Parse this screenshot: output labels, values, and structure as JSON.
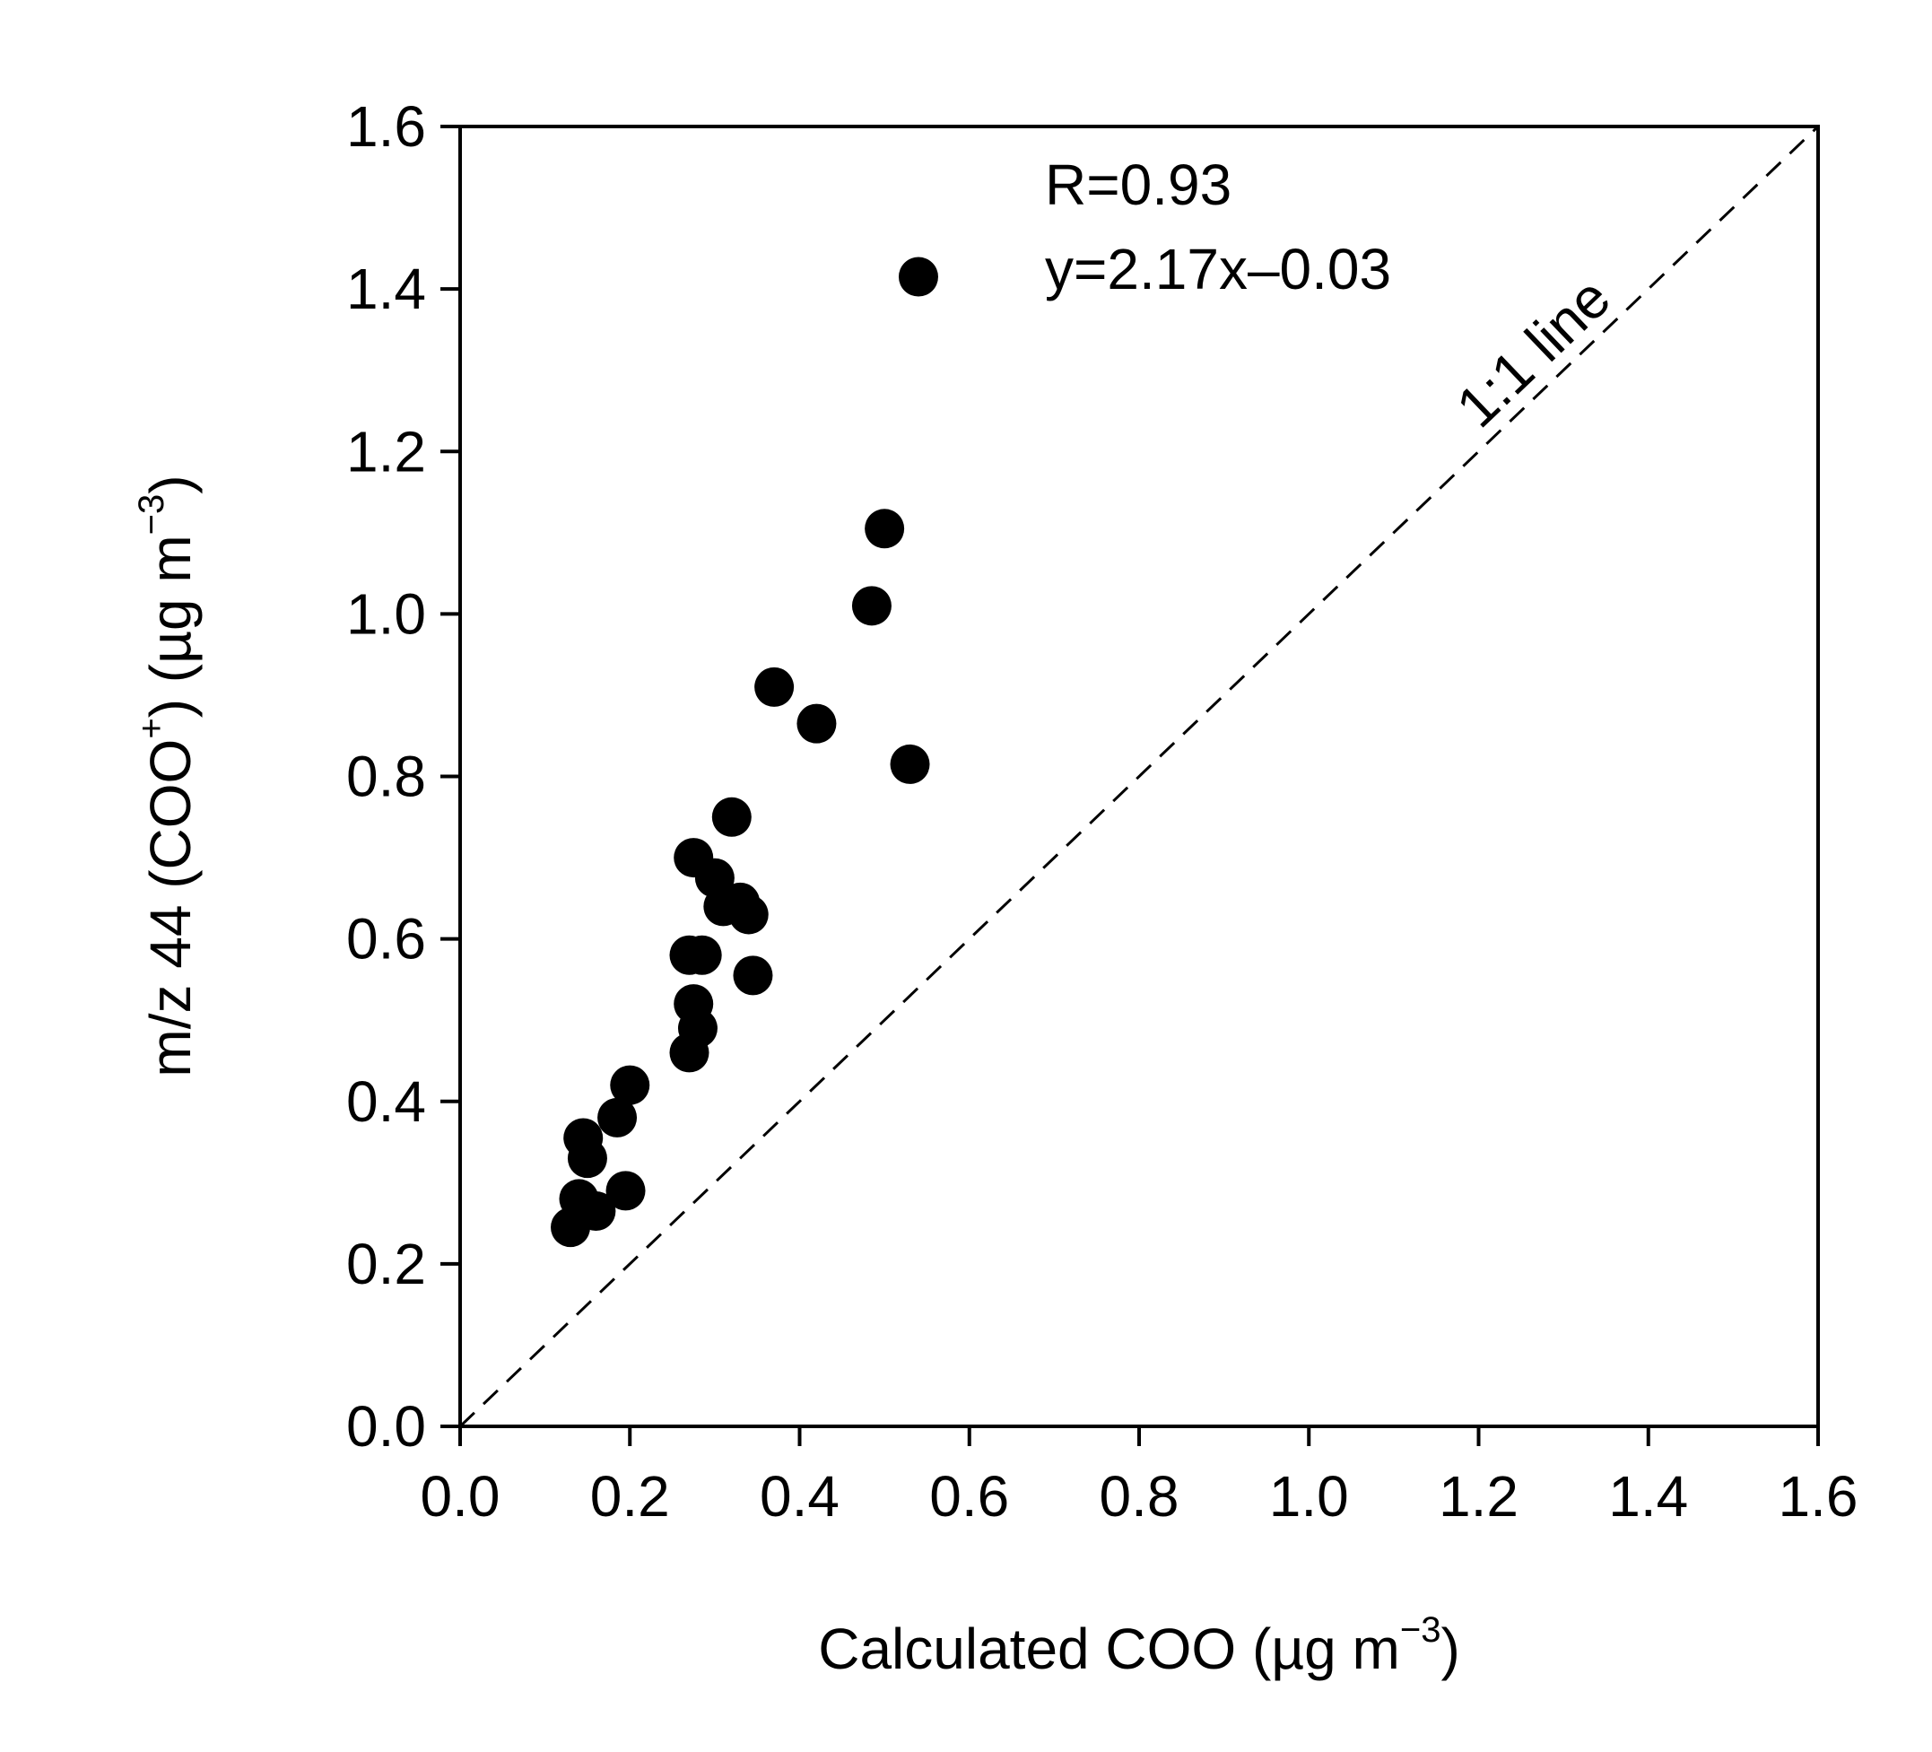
{
  "chart_data": {
    "type": "scatter",
    "xlabel": {
      "main": "Calculated COO (µg m",
      "sup": "−3",
      "close": ")"
    },
    "ylabel": {
      "main": "m/z 44  (COO",
      "sup1": "+",
      "mid": ") (µg m",
      "sup2": "−3",
      "close": ")"
    },
    "xlim": [
      0,
      1.6
    ],
    "ylim": [
      0,
      1.6
    ],
    "xticks": [
      "0.0",
      "0.2",
      "0.4",
      "0.6",
      "0.8",
      "1.0",
      "1.2",
      "1.4",
      "1.6"
    ],
    "yticks": [
      "0.0",
      "0.2",
      "0.4",
      "0.6",
      "0.8",
      "1.0",
      "1.2",
      "1.4",
      "1.6"
    ],
    "grid": false,
    "annotations": {
      "r_value": "R=0.93",
      "fit_equation": "y=2.17x–0.03",
      "one_to_one_label": "1:1 line"
    },
    "reference_line": {
      "style": "dashed",
      "from": [
        0,
        0
      ],
      "to": [
        1.6,
        1.6
      ]
    },
    "series": [
      {
        "points": [
          [
            0.13,
            0.245
          ],
          [
            0.14,
            0.28
          ],
          [
            0.16,
            0.265
          ],
          [
            0.145,
            0.355
          ],
          [
            0.15,
            0.33
          ],
          [
            0.185,
            0.38
          ],
          [
            0.195,
            0.29
          ],
          [
            0.2,
            0.42
          ],
          [
            0.27,
            0.46
          ],
          [
            0.28,
            0.49
          ],
          [
            0.275,
            0.52
          ],
          [
            0.27,
            0.58
          ],
          [
            0.285,
            0.58
          ],
          [
            0.275,
            0.7
          ],
          [
            0.3,
            0.675
          ],
          [
            0.31,
            0.64
          ],
          [
            0.33,
            0.645
          ],
          [
            0.34,
            0.63
          ],
          [
            0.345,
            0.555
          ],
          [
            0.32,
            0.75
          ],
          [
            0.37,
            0.91
          ],
          [
            0.42,
            0.865
          ],
          [
            0.485,
            1.01
          ],
          [
            0.5,
            1.105
          ],
          [
            0.53,
            0.815
          ],
          [
            0.54,
            1.415
          ]
        ]
      }
    ]
  }
}
